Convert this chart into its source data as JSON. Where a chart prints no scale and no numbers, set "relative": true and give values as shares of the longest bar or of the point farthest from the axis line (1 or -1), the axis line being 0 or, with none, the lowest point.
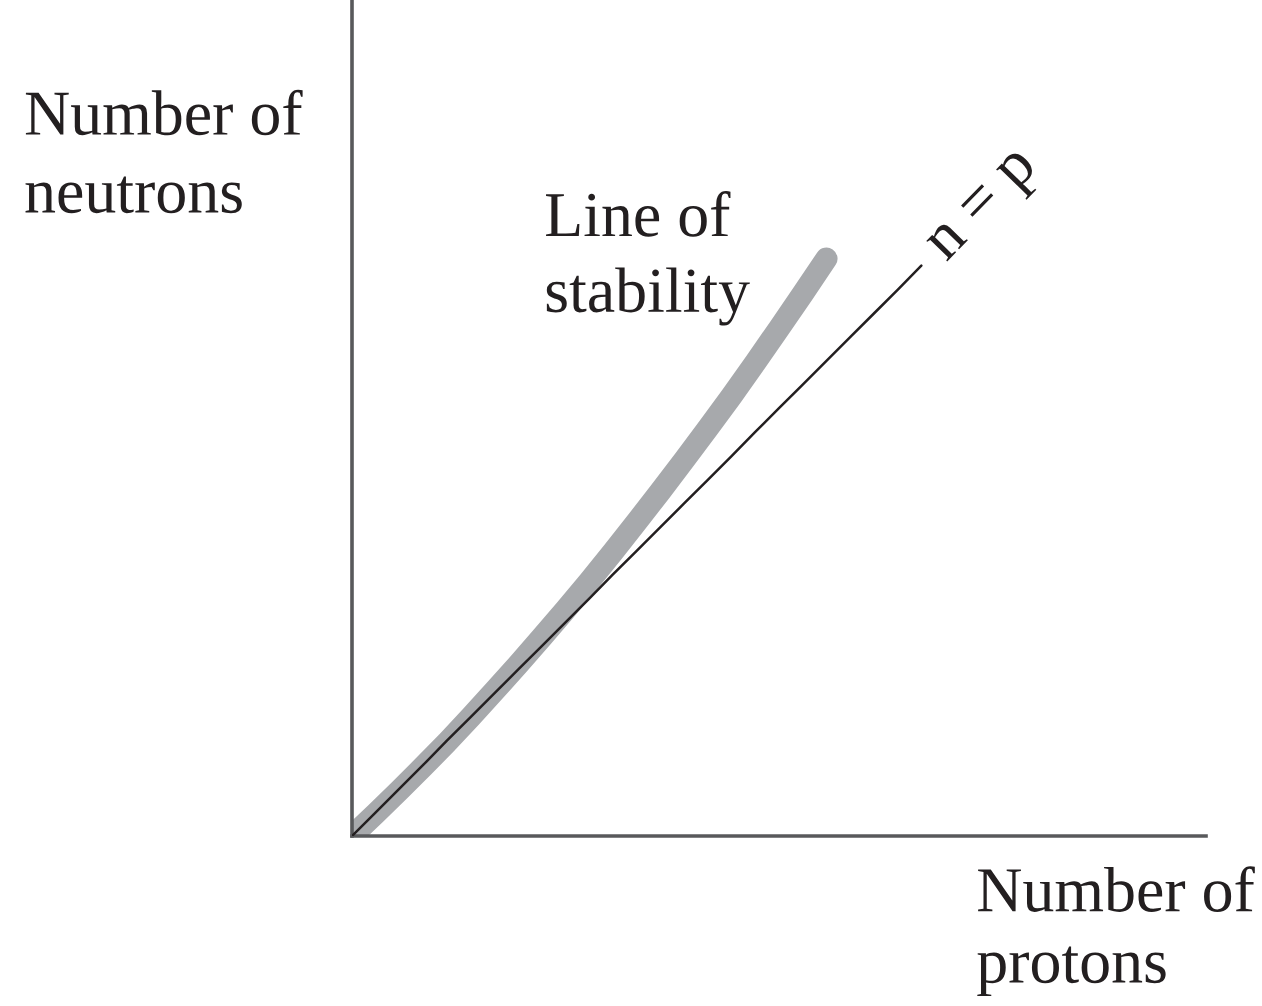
{
  "chart_data": {
    "type": "line",
    "relative": true,
    "xlabel": "Number of\nprotons",
    "ylabel": "Number of\nneutrons",
    "categories": [
      null,
      null,
      null,
      null,
      null,
      null,
      null,
      null,
      null,
      null,
      null,
      null,
      null,
      null,
      null,
      null,
      null,
      null,
      null,
      null,
      null,
      null,
      null,
      null,
      null,
      null,
      null,
      null,
      null,
      null,
      null,
      null,
      null,
      null,
      null,
      null,
      null
    ],
    "series": [
      {
        "name": "Line of\nstability",
        "color": "#a7a9ac",
        "values": [
          0,
          0.039,
          0.079,
          0.12,
          0.162,
          0.206,
          0.251,
          0.297,
          0.344,
          0.392,
          0.441,
          0.492,
          0.544,
          0.597,
          0.651,
          0.706,
          0.762,
          0.82,
          0.879,
          0.939,
          1.0,
          null,
          null,
          null,
          null,
          null,
          null,
          null,
          null,
          null,
          null,
          null,
          null,
          null,
          null,
          null,
          null
        ]
      },
      {
        "name": "n = p",
        "color": "#231f20",
        "values": [
          0,
          0.041,
          0.082,
          0.123,
          0.165,
          0.206,
          0.247,
          0.288,
          0.329,
          0.37,
          0.411,
          0.453,
          0.494,
          0.535,
          0.576,
          0.617,
          0.658,
          0.7,
          0.741,
          0.782,
          0.823,
          0.864,
          0.905,
          0.946,
          0.988,
          null,
          null,
          null,
          null,
          null,
          null,
          null,
          null,
          null,
          null,
          null,
          null
        ]
      }
    ]
  }
}
